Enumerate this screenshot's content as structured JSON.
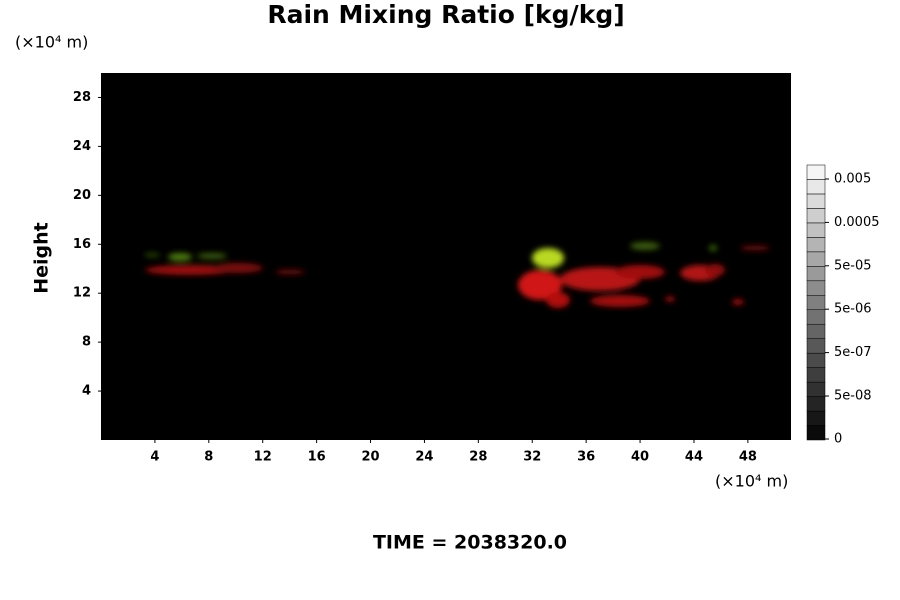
{
  "chart_data": {
    "type": "field",
    "title": "Rain Mixing Ratio [kg/kg]",
    "y_unit": "(×10⁴ m)",
    "x_unit": "(×10⁴ m)",
    "ylabel": "Height",
    "footer": "TIME = 2038320.0",
    "xlim": [
      0,
      51.2
    ],
    "ylim": [
      0,
      30
    ],
    "xticks": [
      4,
      8,
      12,
      16,
      20,
      24,
      28,
      32,
      36,
      40,
      44,
      48
    ],
    "yticks": [
      4,
      8,
      12,
      16,
      20,
      24,
      28
    ],
    "colorbar": {
      "scale": "log",
      "ticks": [
        0,
        {
          "value": 5e-08,
          "label": "5e-08"
        },
        {
          "value": 5e-07,
          "label": "5e-07"
        },
        {
          "value": 5e-06,
          "label": "5e-06"
        },
        {
          "value": 5e-05,
          "label": "5e-05"
        },
        0.0005,
        0.005
      ]
    }
  }
}
